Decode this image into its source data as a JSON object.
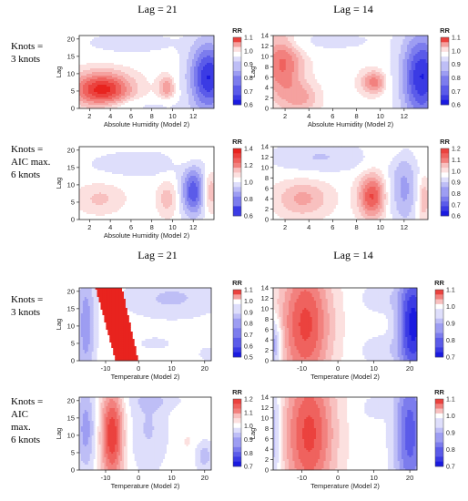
{
  "column_headers": {
    "top_left": "Lag = 21",
    "top_right": "Lag = 14",
    "bottom_left": "Lag = 21",
    "bottom_right": "Lag = 14"
  },
  "row_labels": [
    [
      "Knots =",
      "3 knots"
    ],
    [
      "Knots =",
      "AIC max.",
      "6 knots"
    ],
    [
      "Knots =",
      "3 knots"
    ],
    [
      "Knots =",
      "AIC",
      "max.",
      "6 knots"
    ]
  ],
  "colors": {
    "high": "#e8231e",
    "mid": "#ffffff",
    "low": "#1a1ae0"
  },
  "chart_data": [
    {
      "type": "heatmap",
      "xlabel": "Absolute Humidity (Model 2)",
      "ylabel": "Lag",
      "xlim": [
        1,
        14
      ],
      "ylim": [
        0,
        21
      ],
      "xticks": [
        2,
        4,
        6,
        8,
        10,
        12
      ],
      "yticks": [
        0,
        5,
        10,
        15,
        20
      ],
      "legend_title": "RR",
      "cbar_ticks": [
        "1.1",
        "1.0",
        "0.9",
        "0.8",
        "0.7",
        "0.6"
      ],
      "cbar_range": [
        0.55,
        1.12
      ],
      "blobs": [
        {
          "x": 3.2,
          "y": 5.5,
          "sx": 2.0,
          "sy": 3.5,
          "rr": 0.12
        },
        {
          "x": 9.5,
          "y": 6.0,
          "sx": 0.6,
          "sy": 2.5,
          "rr": 0.06
        },
        {
          "x": 13.5,
          "y": 9.0,
          "sx": 1.3,
          "sy": 7.0,
          "rr": -0.42
        },
        {
          "x": 6.0,
          "y": 19.0,
          "sx": 3.5,
          "sy": 2.5,
          "rr": -0.06
        },
        {
          "x": 8.0,
          "y": 0.5,
          "sx": 3.0,
          "sy": 1.5,
          "rr": -0.04
        }
      ]
    },
    {
      "type": "heatmap",
      "xlabel": "Absolute Humidity (Model 2)",
      "ylabel": "Lag",
      "xlim": [
        1,
        14
      ],
      "ylim": [
        0,
        14
      ],
      "xticks": [
        2,
        4,
        6,
        8,
        10,
        12
      ],
      "yticks": [
        0,
        2,
        4,
        6,
        8,
        10,
        12,
        14
      ],
      "legend_title": "RR",
      "cbar_ticks": [
        "1.1",
        "1.0",
        "0.9",
        "0.8",
        "0.7",
        "0.6"
      ],
      "cbar_range": [
        0.55,
        1.12
      ],
      "blobs": [
        {
          "x": 1.8,
          "y": 8.5,
          "sx": 1.2,
          "sy": 5.0,
          "rr": 0.08
        },
        {
          "x": 3.5,
          "y": 2.0,
          "sx": 1.0,
          "sy": 2.0,
          "rr": 0.04
        },
        {
          "x": 9.5,
          "y": 5.0,
          "sx": 0.8,
          "sy": 1.6,
          "rr": 0.07
        },
        {
          "x": 13.5,
          "y": 6.0,
          "sx": 1.2,
          "sy": 6.0,
          "rr": -0.42
        },
        {
          "x": 6.0,
          "y": 13.0,
          "sx": 3.0,
          "sy": 1.5,
          "rr": -0.05
        }
      ]
    },
    {
      "type": "heatmap",
      "xlabel": "Absolute Humidity (Model 2)",
      "ylabel": "Lag",
      "xlim": [
        1,
        14
      ],
      "ylim": [
        0,
        21
      ],
      "xticks": [
        2,
        4,
        6,
        8,
        10,
        12
      ],
      "yticks": [
        0,
        5,
        10,
        15,
        20
      ],
      "legend_title": "RR",
      "cbar_ticks": [
        "1.4",
        "1.2",
        "1.0",
        "0.8",
        "0.6"
      ],
      "cbar_range": [
        0.6,
        1.4
      ],
      "blobs": [
        {
          "x": 3.0,
          "y": 6.0,
          "sx": 1.6,
          "sy": 3.0,
          "rr": 0.1
        },
        {
          "x": 9.5,
          "y": 6.0,
          "sx": 0.7,
          "sy": 3.5,
          "rr": 0.12
        },
        {
          "x": 12.0,
          "y": 8.0,
          "sx": 0.8,
          "sy": 5.0,
          "rr": -0.3
        },
        {
          "x": 13.6,
          "y": 8.0,
          "sx": 0.5,
          "sy": 4.0,
          "rr": 0.15
        },
        {
          "x": 7.0,
          "y": 16.0,
          "sx": 4.0,
          "sy": 3.0,
          "rr": -0.06
        },
        {
          "x": 11.5,
          "y": 18.0,
          "sx": 1.0,
          "sy": 3.0,
          "rr": 0.06
        }
      ]
    },
    {
      "type": "heatmap",
      "xlabel": "",
      "ylabel": "",
      "xlim": [
        1,
        14
      ],
      "ylim": [
        0,
        14
      ],
      "xticks": [
        2,
        4,
        6,
        8,
        10,
        12
      ],
      "yticks": [
        0,
        2,
        4,
        6,
        8,
        10,
        12,
        14
      ],
      "legend_title": "RR",
      "cbar_ticks": [
        "1.2",
        "1.1",
        "1.0",
        "0.9",
        "0.8",
        "0.7",
        "0.6"
      ],
      "cbar_range": [
        0.55,
        1.25
      ],
      "blobs": [
        {
          "x": 3.5,
          "y": 4.0,
          "sx": 1.6,
          "sy": 2.5,
          "rr": 0.1
        },
        {
          "x": 9.3,
          "y": 4.5,
          "sx": 0.8,
          "sy": 3.0,
          "rr": 0.2
        },
        {
          "x": 12.0,
          "y": 6.0,
          "sx": 0.8,
          "sy": 5.0,
          "rr": -0.18
        },
        {
          "x": 13.6,
          "y": 4.0,
          "sx": 0.4,
          "sy": 3.0,
          "rr": 0.1
        },
        {
          "x": 5.0,
          "y": 12.0,
          "sx": 3.0,
          "sy": 2.0,
          "rr": -0.1
        },
        {
          "x": 11.0,
          "y": 13.0,
          "sx": 1.5,
          "sy": 1.5,
          "rr": 0.04
        }
      ]
    },
    {
      "type": "heatmap",
      "xlabel": "Temperature (Model 2)",
      "ylabel": "Lag",
      "xlim": [
        -18,
        22
      ],
      "ylim": [
        0,
        21
      ],
      "xticks": [
        -10,
        0,
        10,
        20
      ],
      "yticks": [
        0,
        5,
        10,
        15,
        20
      ],
      "legend_title": "RR",
      "cbar_ticks": [
        "1.1",
        "1.0",
        "0.9",
        "0.8",
        "0.7",
        "0.6",
        "0.5"
      ],
      "cbar_range": [
        0.5,
        1.1
      ],
      "blobs": [
        {
          "x": -16.0,
          "y": 10.0,
          "sx": 2.0,
          "sy": 12.0,
          "rr": -0.22
        },
        {
          "x": 10.0,
          "y": 18.0,
          "sx": 10.0,
          "sy": 4.0,
          "rr": -0.12
        },
        {
          "x": 5.0,
          "y": 5.0,
          "sx": 4.0,
          "sy": 1.5,
          "rr": -0.06
        },
        {
          "x": 21.0,
          "y": 2.0,
          "sx": 2.0,
          "sy": 1.5,
          "rr": -0.08
        }
      ],
      "red_band": {
        "top": [
          -13,
          -5
        ],
        "bottom": [
          -7,
          0
        ]
      }
    },
    {
      "type": "heatmap",
      "xlabel": "Temperature (Model 2)",
      "ylabel": "",
      "xlim": [
        -18,
        22
      ],
      "ylim": [
        0,
        14
      ],
      "xticks": [
        -10,
        0,
        10,
        20
      ],
      "yticks": [
        0,
        2,
        4,
        6,
        8,
        10,
        12,
        14
      ],
      "legend_title": "RR",
      "cbar_ticks": [
        "1.1",
        "1.0",
        "0.9",
        "0.8",
        "0.7"
      ],
      "cbar_range": [
        0.65,
        1.12
      ],
      "blobs": [
        {
          "x": -9.0,
          "y": 7.0,
          "sx": 5.0,
          "sy": 9.0,
          "rr": 0.1
        },
        {
          "x": 21.0,
          "y": 7.0,
          "sx": 3.0,
          "sy": 8.0,
          "rr": -0.35
        },
        {
          "x": -18.5,
          "y": 3.0,
          "sx": 1.5,
          "sy": 3.0,
          "rr": -0.18
        },
        {
          "x": 12.0,
          "y": 12.0,
          "sx": 4.0,
          "sy": 2.0,
          "rr": -0.06
        },
        {
          "x": 12.0,
          "y": 2.0,
          "sx": 4.0,
          "sy": 2.0,
          "rr": -0.06
        }
      ]
    },
    {
      "type": "heatmap",
      "xlabel": "Temperature (Model 2)",
      "ylabel": "Lag",
      "xlim": [
        -18,
        22
      ],
      "ylim": [
        0,
        21
      ],
      "xticks": [
        -10,
        0,
        10,
        20
      ],
      "yticks": [
        0,
        5,
        10,
        15,
        20
      ],
      "legend_title": "RR",
      "cbar_ticks": [
        "1.2",
        "1.1",
        "1.0",
        "0.9",
        "0.8",
        "0.7"
      ],
      "cbar_range": [
        0.65,
        1.22
      ],
      "blobs": [
        {
          "x": -8.0,
          "y": 10.0,
          "sx": 2.5,
          "sy": 10.0,
          "rr": 0.2
        },
        {
          "x": -16.0,
          "y": 12.0,
          "sx": 2.0,
          "sy": 9.0,
          "rr": -0.15
        },
        {
          "x": 3.0,
          "y": 12.0,
          "sx": 4.0,
          "sy": 9.0,
          "rr": -0.08
        },
        {
          "x": 15.0,
          "y": 8.0,
          "sx": 2.0,
          "sy": 3.0,
          "rr": 0.02
        },
        {
          "x": 20.0,
          "y": 4.0,
          "sx": 2.0,
          "sy": 3.0,
          "rr": -0.1
        },
        {
          "x": 5.0,
          "y": 20.0,
          "sx": 6.0,
          "sy": 2.0,
          "rr": -0.05
        }
      ]
    },
    {
      "type": "heatmap",
      "xlabel": "Temperature (Model 2)",
      "ylabel": "Lag",
      "xlim": [
        -18,
        22
      ],
      "ylim": [
        0,
        14
      ],
      "xticks": [
        -10,
        0,
        10,
        20
      ],
      "yticks": [
        0,
        2,
        4,
        6,
        8,
        10,
        12,
        14
      ],
      "legend_title": "RR",
      "cbar_ticks": [
        "1.1",
        "1.0",
        "0.9",
        "0.8",
        "0.7"
      ],
      "cbar_range": [
        0.65,
        1.12
      ],
      "blobs": [
        {
          "x": -8.0,
          "y": 7.0,
          "sx": 5.0,
          "sy": 10.0,
          "rr": 0.1
        },
        {
          "x": 20.0,
          "y": 7.0,
          "sx": 3.0,
          "sy": 10.0,
          "rr": -0.25
        },
        {
          "x": -18.5,
          "y": 7.0,
          "sx": 1.5,
          "sy": 8.0,
          "rr": -0.12
        },
        {
          "x": 10.0,
          "y": 12.0,
          "sx": 3.0,
          "sy": 2.0,
          "rr": -0.04
        }
      ]
    }
  ]
}
